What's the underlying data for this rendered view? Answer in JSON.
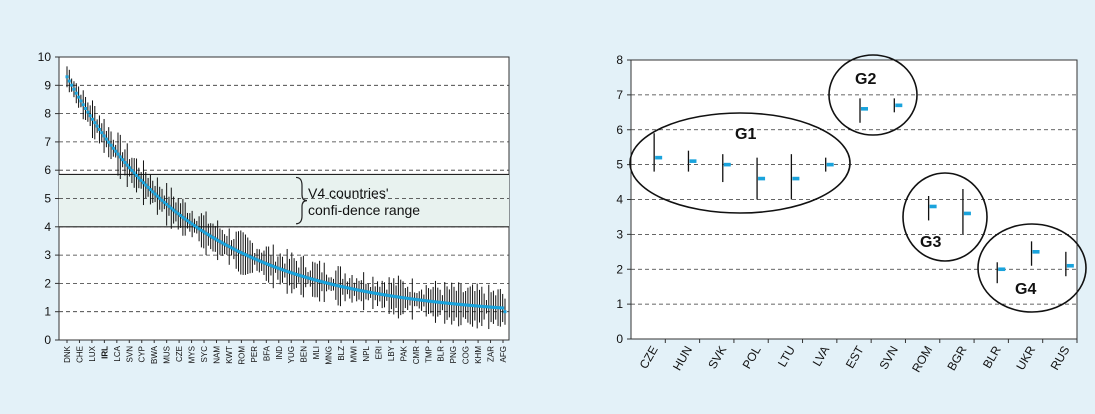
{
  "colors": {
    "background": "#e3f1f8",
    "panel": "#ffffff",
    "marker": "#1aa3dc",
    "band": "#e8f2ef"
  },
  "chart_data": [
    {
      "type": "scatter",
      "ylim": [
        0,
        10
      ],
      "yticks": [
        "0",
        "1",
        "2",
        "3",
        "4",
        "5",
        "6",
        "7",
        "8",
        "9",
        "10"
      ],
      "grid": "horizontal dashed",
      "x_labels": [
        "DNK",
        "CHE",
        "LUX",
        "IRL",
        "LCA",
        "SVN",
        "CYP",
        "BWA",
        "MUS",
        "CZE",
        "MYS",
        "SYC",
        "NAM",
        "KWT",
        "ROM",
        "PER",
        "BFA",
        "IND",
        "YUG",
        "BEN",
        "MLI",
        "MNG",
        "BLZ",
        "MWI",
        "NPL",
        "ERI",
        "LBY",
        "PAK",
        "CMR",
        "TMP",
        "BLR",
        "PNG",
        "COG",
        "KHM",
        "ZAR",
        "AFG"
      ],
      "bold_labels": [
        "IRL"
      ],
      "band": {
        "low": 4.0,
        "high": 5.85
      },
      "annotation": {
        "line1": "V4 countries'",
        "line2": "confi-dence range"
      },
      "n_points": 190,
      "start_value": 9.3,
      "end_value": 1.0
    },
    {
      "type": "scatter",
      "ylim": [
        0,
        8
      ],
      "yticks": [
        "0",
        "1",
        "2",
        "3",
        "4",
        "5",
        "6",
        "7",
        "8"
      ],
      "grid": "horizontal dashed",
      "categories": [
        "CZE",
        "HUN",
        "SVK",
        "POL",
        "LTU",
        "LVA",
        "EST",
        "SVN",
        "ROM",
        "BGR",
        "BLR",
        "UKR",
        "RUS"
      ],
      "values": [
        5.2,
        5.1,
        5.0,
        4.6,
        4.6,
        5.0,
        6.6,
        6.7,
        3.8,
        3.6,
        2.0,
        2.5,
        2.1
      ],
      "ci_low": [
        4.8,
        4.8,
        4.5,
        4.0,
        4.0,
        4.8,
        6.2,
        6.5,
        3.4,
        3.0,
        1.6,
        2.1,
        1.8
      ],
      "ci_high": [
        5.9,
        5.4,
        5.3,
        5.2,
        5.3,
        5.2,
        6.9,
        6.9,
        4.1,
        4.3,
        2.2,
        2.8,
        2.5
      ],
      "groups": [
        {
          "label": "G1",
          "members": [
            "CZE",
            "HUN",
            "SVK",
            "POL",
            "LTU",
            "LVA"
          ]
        },
        {
          "label": "G2",
          "members": [
            "EST",
            "SVN"
          ]
        },
        {
          "label": "G3",
          "members": [
            "ROM",
            "BGR"
          ]
        },
        {
          "label": "G4",
          "members": [
            "BLR",
            "UKR",
            "RUS"
          ]
        }
      ]
    }
  ]
}
